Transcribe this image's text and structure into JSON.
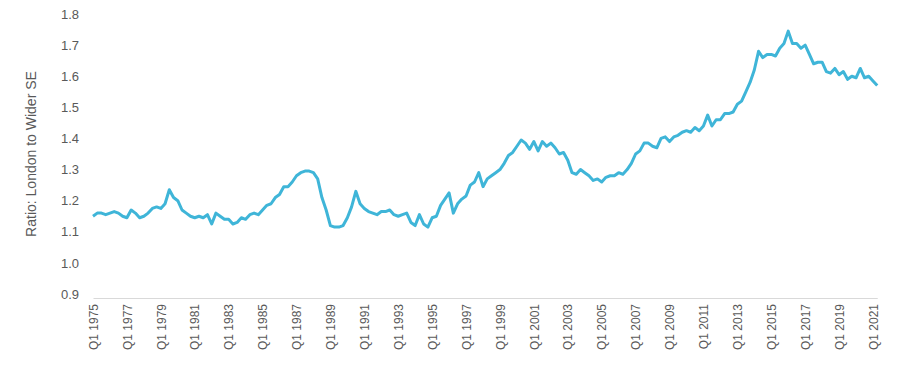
{
  "chart_data": {
    "type": "line",
    "y_label": "Ratio: London to Wider SE",
    "color": "#3fb5d8",
    "grid": false,
    "ylim": [
      0.9,
      1.8
    ],
    "yticks": [
      0.9,
      {
        "value": 1,
        "label": "1.0"
      },
      1.1,
      1.2,
      1.3,
      1.4,
      1.5,
      1.6,
      1.7,
      1.8
    ],
    "categories": [
      "Q1 1975",
      null,
      null,
      null,
      null,
      null,
      null,
      null,
      "Q1 1977",
      null,
      null,
      null,
      null,
      null,
      null,
      null,
      "Q1 1979",
      null,
      null,
      null,
      null,
      null,
      null,
      null,
      "Q1 1981",
      null,
      null,
      null,
      null,
      null,
      null,
      null,
      "Q1 1983",
      null,
      null,
      null,
      null,
      null,
      null,
      null,
      "Q1 1985",
      null,
      null,
      null,
      null,
      null,
      null,
      null,
      "Q1 1987",
      null,
      null,
      null,
      null,
      null,
      null,
      null,
      "Q1 1989",
      null,
      null,
      null,
      null,
      null,
      null,
      null,
      "Q1 1991",
      null,
      null,
      null,
      null,
      null,
      null,
      null,
      "Q1 1993",
      null,
      null,
      null,
      null,
      null,
      null,
      null,
      "Q1 1995",
      null,
      null,
      null,
      null,
      null,
      null,
      null,
      "Q1 1997",
      null,
      null,
      null,
      null,
      null,
      null,
      null,
      "Q1 1999",
      null,
      null,
      null,
      null,
      null,
      null,
      null,
      "Q1 2001",
      null,
      null,
      null,
      null,
      null,
      null,
      null,
      "Q1 2003",
      null,
      null,
      null,
      null,
      null,
      null,
      null,
      "Q1 2005",
      null,
      null,
      null,
      null,
      null,
      null,
      null,
      "Q1 2007",
      null,
      null,
      null,
      null,
      null,
      null,
      null,
      "Q1 2009",
      null,
      null,
      null,
      null,
      null,
      null,
      null,
      "Q1 2011",
      null,
      null,
      null,
      null,
      null,
      null,
      null,
      "Q1 2013",
      null,
      null,
      null,
      null,
      null,
      null,
      null,
      "Q1 2015",
      null,
      null,
      null,
      null,
      null,
      null,
      null,
      "Q1 2017",
      null,
      null,
      null,
      null,
      null,
      null,
      null,
      "Q1 2019",
      null,
      null,
      null,
      null,
      null,
      null,
      null,
      "Q1 2021",
      null
    ],
    "values": [
      1.15,
      1.16,
      1.16,
      1.155,
      1.16,
      1.165,
      1.16,
      1.15,
      1.145,
      1.17,
      1.16,
      1.145,
      1.15,
      1.16,
      1.175,
      1.18,
      1.175,
      1.19,
      1.235,
      1.21,
      1.2,
      1.17,
      1.16,
      1.15,
      1.145,
      1.15,
      1.145,
      1.155,
      1.125,
      1.16,
      1.15,
      1.14,
      1.14,
      1.125,
      1.13,
      1.145,
      1.14,
      1.155,
      1.16,
      1.155,
      1.17,
      1.185,
      1.19,
      1.21,
      1.22,
      1.245,
      1.245,
      1.26,
      1.28,
      1.29,
      1.295,
      1.295,
      1.29,
      1.27,
      1.21,
      1.17,
      1.12,
      1.115,
      1.115,
      1.12,
      1.145,
      1.18,
      1.23,
      1.19,
      1.175,
      1.165,
      1.16,
      1.155,
      1.165,
      1.165,
      1.17,
      1.155,
      1.15,
      1.155,
      1.16,
      1.13,
      1.12,
      1.155,
      1.125,
      1.115,
      1.145,
      1.15,
      1.185,
      1.205,
      1.225,
      1.16,
      1.19,
      1.205,
      1.215,
      1.25,
      1.26,
      1.29,
      1.245,
      1.27,
      1.28,
      1.29,
      1.3,
      1.32,
      1.345,
      1.355,
      1.375,
      1.395,
      1.385,
      1.365,
      1.39,
      1.36,
      1.39,
      1.375,
      1.385,
      1.37,
      1.35,
      1.355,
      1.33,
      1.29,
      1.285,
      1.3,
      1.29,
      1.28,
      1.265,
      1.27,
      1.26,
      1.275,
      1.28,
      1.28,
      1.29,
      1.285,
      1.3,
      1.32,
      1.35,
      1.36,
      1.385,
      1.385,
      1.375,
      1.37,
      1.4,
      1.405,
      1.39,
      1.405,
      1.41,
      1.42,
      1.425,
      1.42,
      1.435,
      1.425,
      1.44,
      1.475,
      1.44,
      1.46,
      1.46,
      1.48,
      1.48,
      1.485,
      1.51,
      1.52,
      1.55,
      1.58,
      1.62,
      1.68,
      1.66,
      1.67,
      1.67,
      1.665,
      1.69,
      1.705,
      1.745,
      1.705,
      1.705,
      1.69,
      1.7,
      1.67,
      1.64,
      1.645,
      1.645,
      1.615,
      1.61,
      1.625,
      1.605,
      1.615,
      1.59,
      1.6,
      1.595,
      1.625,
      1.595,
      1.6,
      1.585,
      1.57
    ]
  }
}
